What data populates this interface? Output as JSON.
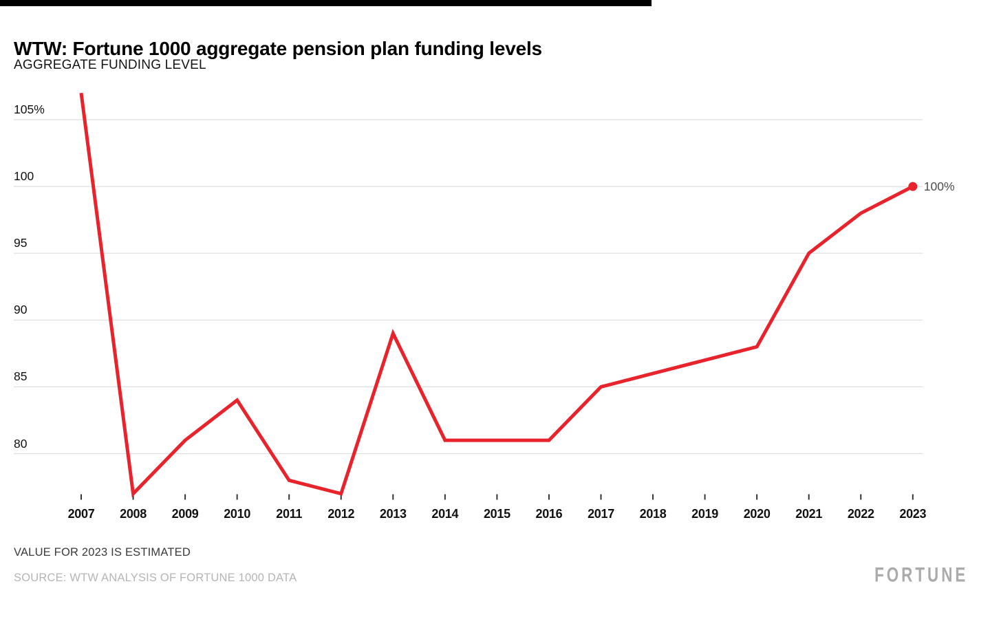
{
  "header": {
    "title": "WTW: Fortune 1000 aggregate pension plan funding levels",
    "subtitle": "AGGREGATE FUNDING LEVEL"
  },
  "chart_data": {
    "type": "line",
    "title": "WTW: Fortune 1000 aggregate pension plan funding levels",
    "ylabel": "AGGREGATE FUNDING LEVEL",
    "categories": [
      "2007",
      "2008",
      "2009",
      "2010",
      "2011",
      "2012",
      "2013",
      "2014",
      "2015",
      "2016",
      "2017",
      "2018",
      "2019",
      "2020",
      "2021",
      "2022",
      "2023"
    ],
    "series": [
      {
        "name": "Aggregate funding level (%)",
        "values": [
          107,
          77,
          81,
          84,
          78,
          77,
          89,
          81,
          81,
          81,
          85,
          86,
          87,
          88,
          95,
          98,
          100
        ]
      }
    ],
    "y_ticks": [
      {
        "label": "105%",
        "value": 105
      },
      {
        "label": "100",
        "value": 100
      },
      {
        "label": "95",
        "value": 95
      },
      {
        "label": "90",
        "value": 90
      },
      {
        "label": "85",
        "value": 85
      },
      {
        "label": "80",
        "value": 80
      }
    ],
    "ylim": [
      76,
      107.5
    ],
    "grid": "horizontal",
    "legend": "none",
    "end_point_label": "100%",
    "line_color": "#e8232c",
    "gridline_color": "#dedede",
    "tick_color": "#333333",
    "annotations": [
      "VALUE FOR 2023 IS ESTIMATED"
    ]
  },
  "footer": {
    "note": "VALUE FOR 2023 IS ESTIMATED",
    "source": "SOURCE: WTW ANALYSIS OF FORTUNE 1000 DATA",
    "brand": "FORTUNE"
  },
  "colors": {
    "accent_red": "#e8232c",
    "topbar_black": "#000000",
    "source_gray": "#b5b5b5",
    "brand_gray": "#ababab"
  }
}
